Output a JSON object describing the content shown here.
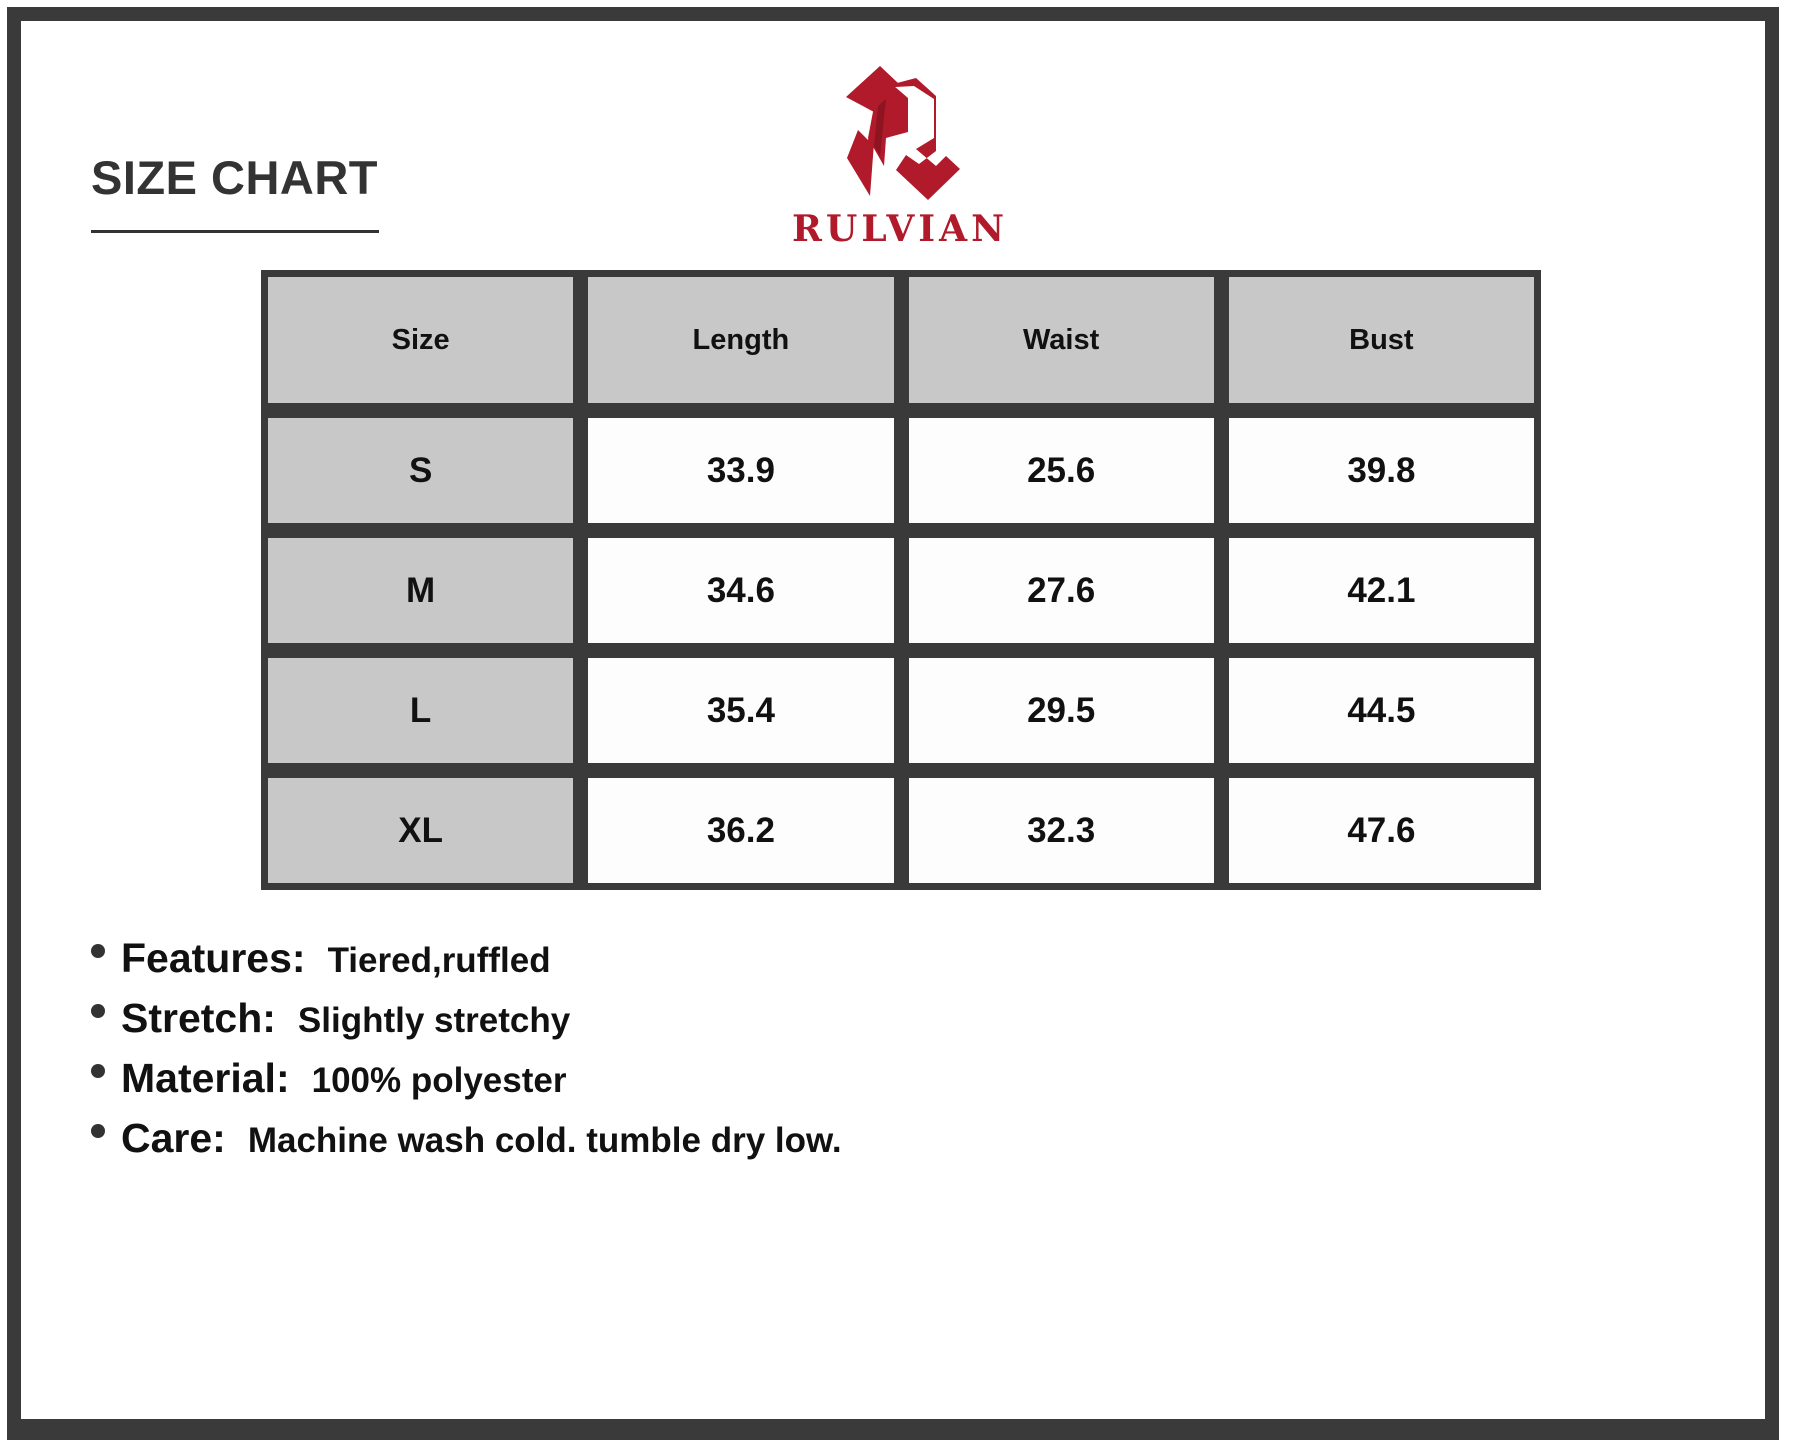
{
  "title": "SIZE CHART",
  "brand": {
    "name": "RULVIAN",
    "color": "#b01a2a"
  },
  "table": {
    "headers": [
      "Size",
      "Length",
      "Waist",
      "Bust"
    ],
    "rows": [
      [
        "S",
        "33.9",
        "25.6",
        "39.8"
      ],
      [
        "M",
        "34.6",
        "27.6",
        "42.1"
      ],
      [
        "L",
        "35.4",
        "29.5",
        "44.5"
      ],
      [
        "XL",
        "36.2",
        "32.3",
        "47.6"
      ]
    ]
  },
  "features": [
    {
      "label": "Features:",
      "value": "Tiered,ruffled"
    },
    {
      "label": "Stretch:",
      "value": "Slightly stretchy"
    },
    {
      "label": "Material:",
      "value": "100% polyester"
    },
    {
      "label": "Care:",
      "value": "Machine wash cold. tumble dry low."
    }
  ]
}
